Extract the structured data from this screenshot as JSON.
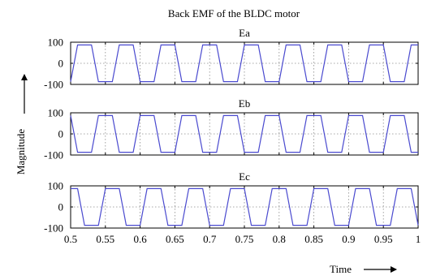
{
  "figure": {
    "title": "Back EMF of the BLDC motor",
    "ylabel": "Magnitude",
    "xlabel": "Time"
  },
  "chart_data": [
    {
      "type": "line",
      "title": "Ea",
      "xlim": [
        0.5,
        1.0
      ],
      "ylim": [
        -100,
        100
      ],
      "yticks": [
        -100,
        0,
        100
      ],
      "grid": true,
      "series": [
        {
          "color": "#4a4acf",
          "x": [
            0.5,
            0.51,
            0.52,
            0.53,
            0.54,
            0.55,
            0.56,
            0.57,
            0.58,
            0.59,
            0.6,
            0.61,
            0.62,
            0.63,
            0.64,
            0.65,
            0.66,
            0.67,
            0.68,
            0.69,
            0.7,
            0.71,
            0.72,
            0.73,
            0.74,
            0.75,
            0.76,
            0.77,
            0.78,
            0.79,
            0.8,
            0.81,
            0.82,
            0.83,
            0.84,
            0.85,
            0.86,
            0.87,
            0.88,
            0.89,
            0.9,
            0.91,
            0.92,
            0.93,
            0.94,
            0.95,
            0.96,
            0.97,
            0.98,
            0.99,
            1.0
          ],
          "y": [
            -87,
            87,
            87,
            87,
            -87,
            -87,
            -87,
            87,
            87,
            87,
            -87,
            -87,
            -87,
            87,
            87,
            87,
            -87,
            -87,
            -87,
            87,
            87,
            87,
            -87,
            -87,
            -87,
            87,
            87,
            87,
            -87,
            -87,
            -87,
            87,
            87,
            87,
            -87,
            -87,
            -87,
            87,
            87,
            87,
            -87,
            -87,
            -87,
            87,
            87,
            87,
            -87,
            -87,
            -87,
            87,
            87
          ]
        }
      ]
    },
    {
      "type": "line",
      "title": "Eb",
      "xlim": [
        0.5,
        1.0
      ],
      "ylim": [
        -100,
        100
      ],
      "yticks": [
        -100,
        0,
        100
      ],
      "grid": true,
      "series": [
        {
          "color": "#4a4acf",
          "x": [
            0.5,
            0.51,
            0.52,
            0.53,
            0.54,
            0.55,
            0.56,
            0.57,
            0.58,
            0.59,
            0.6,
            0.61,
            0.62,
            0.63,
            0.64,
            0.65,
            0.66,
            0.67,
            0.68,
            0.69,
            0.7,
            0.71,
            0.72,
            0.73,
            0.74,
            0.75,
            0.76,
            0.77,
            0.78,
            0.79,
            0.8,
            0.81,
            0.82,
            0.83,
            0.84,
            0.85,
            0.86,
            0.87,
            0.88,
            0.89,
            0.9,
            0.91,
            0.92,
            0.93,
            0.94,
            0.95,
            0.96,
            0.97,
            0.98,
            0.99,
            1.0
          ],
          "y": [
            87,
            -87,
            -87,
            -87,
            87,
            87,
            87,
            -87,
            -87,
            -87,
            87,
            87,
            87,
            -87,
            -87,
            -87,
            87,
            87,
            87,
            -87,
            -87,
            -87,
            87,
            87,
            87,
            -87,
            -87,
            -87,
            87,
            87,
            87,
            -87,
            -87,
            -87,
            87,
            87,
            87,
            -87,
            -87,
            -87,
            87,
            87,
            87,
            -87,
            -87,
            -87,
            87,
            87,
            87,
            -87,
            -87
          ]
        }
      ]
    },
    {
      "type": "line",
      "title": "Ec",
      "xlim": [
        0.5,
        1.0
      ],
      "ylim": [
        -100,
        100
      ],
      "yticks": [
        -100,
        0,
        100
      ],
      "xticks": [
        0.5,
        0.55,
        0.6,
        0.65,
        0.7,
        0.75,
        0.8,
        0.85,
        0.9,
        0.95,
        1
      ],
      "xticklabels": [
        "0.5",
        "0.55",
        "0.6",
        "0.65",
        "0.7",
        "0.75",
        "0.8",
        "0.85",
        "0.9",
        "0.95",
        "1"
      ],
      "grid": true,
      "series": [
        {
          "color": "#4a4acf",
          "x": [
            0.5,
            0.51,
            0.52,
            0.53,
            0.54,
            0.55,
            0.56,
            0.57,
            0.58,
            0.59,
            0.6,
            0.61,
            0.62,
            0.63,
            0.64,
            0.65,
            0.66,
            0.67,
            0.68,
            0.69,
            0.7,
            0.71,
            0.72,
            0.73,
            0.74,
            0.75,
            0.76,
            0.77,
            0.78,
            0.79,
            0.8,
            0.81,
            0.82,
            0.83,
            0.84,
            0.85,
            0.86,
            0.87,
            0.88,
            0.89,
            0.9,
            0.91,
            0.92,
            0.93,
            0.94,
            0.95,
            0.96,
            0.97,
            0.98,
            0.99,
            1.0
          ],
          "y": [
            87,
            87,
            -87,
            -87,
            -87,
            87,
            87,
            87,
            -87,
            -87,
            -87,
            87,
            87,
            87,
            -87,
            -87,
            -87,
            87,
            87,
            87,
            -87,
            -87,
            -87,
            87,
            87,
            87,
            -87,
            -87,
            -87,
            87,
            87,
            87,
            -87,
            -87,
            -87,
            87,
            87,
            87,
            -87,
            -87,
            -87,
            87,
            87,
            87,
            -87,
            -87,
            -87,
            87,
            87,
            87,
            -87
          ]
        }
      ]
    }
  ]
}
